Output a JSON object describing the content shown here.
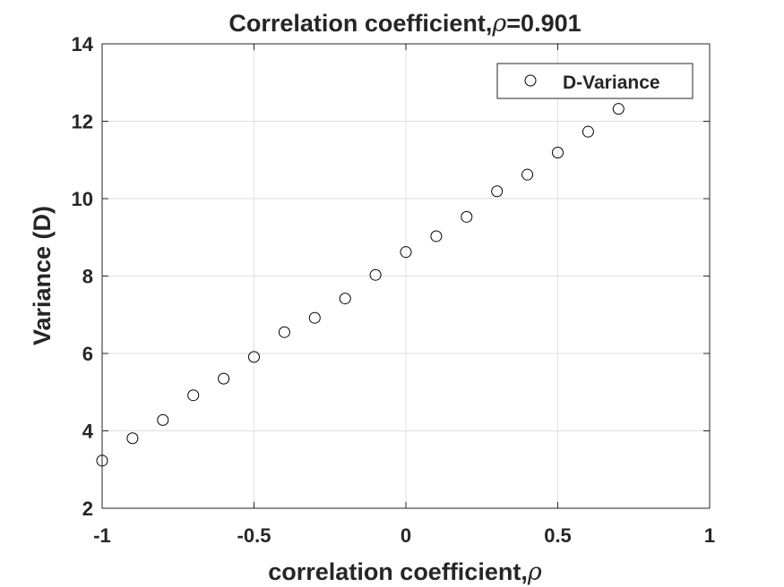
{
  "chart_data": {
    "type": "scatter",
    "title": "Correlation coefficient,",
    "title_symbol": "ρ",
    "title_suffix": "=0.901",
    "xlabel": "correlation coefficient,",
    "xlabel_symbol": "ρ",
    "ylabel": "Variance (D)",
    "xlim": [
      -1,
      1
    ],
    "ylim": [
      2,
      14
    ],
    "xticks": [
      -1,
      -0.5,
      0,
      0.5,
      1
    ],
    "xtick_labels": [
      "-1",
      "-0.5",
      "0",
      "0.5",
      "1"
    ],
    "yticks": [
      2,
      4,
      6,
      8,
      10,
      12,
      14
    ],
    "ytick_labels": [
      "2",
      "4",
      "6",
      "8",
      "10",
      "12",
      "14"
    ],
    "grid": true,
    "legend_position": "top-right",
    "marker": "open-circle",
    "series": [
      {
        "name": "D-Variance",
        "color": "#000000",
        "x": [
          -1,
          -0.9,
          -0.8,
          -0.7,
          -0.6,
          -0.5,
          -0.4,
          -0.3,
          -0.2,
          -0.1,
          0,
          0.1,
          0.2,
          0.3,
          0.4,
          0.5,
          0.6,
          0.7
        ],
        "y": [
          3.23,
          3.81,
          4.28,
          4.92,
          5.35,
          5.91,
          6.55,
          6.92,
          7.42,
          8.03,
          8.62,
          9.03,
          9.53,
          10.19,
          10.62,
          11.19,
          11.73,
          12.32
        ]
      }
    ]
  }
}
